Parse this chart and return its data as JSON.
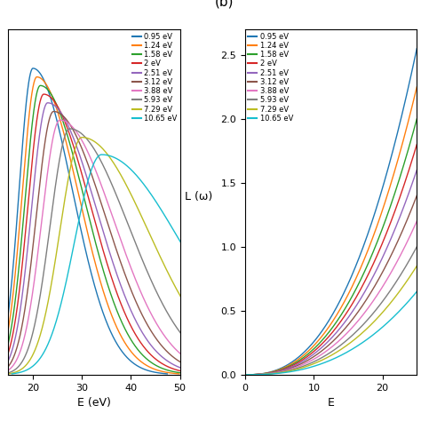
{
  "legend_labels": [
    "0.95 eV",
    "1.24 eV",
    "1.58 eV",
    "2 eV",
    "2.51 eV",
    "3.12 eV",
    "3.88 eV",
    "5.93 eV",
    "7.29 eV",
    "10.65 eV"
  ],
  "colors": [
    "#1f77b4",
    "#ff7f0e",
    "#2ca02c",
    "#d62728",
    "#9467bd",
    "#8c564b",
    "#e377c2",
    "#7f7f7f",
    "#bcbd22",
    "#17becf"
  ],
  "panel_b_label": "(b)",
  "xlabel_a": "E (eV)",
  "xlabel_b": "E",
  "ylabel_b": "L (ω)",
  "panel_a_xlim": [
    15,
    50
  ],
  "panel_a_ylim": [
    0,
    4.0
  ],
  "panel_b_xlim": [
    0,
    25
  ],
  "panel_b_ylim": [
    0,
    2.7
  ],
  "absorption_peak_x": [
    20.0,
    20.8,
    21.5,
    22.2,
    23.0,
    24.2,
    25.5,
    27.5,
    30.0,
    34.0
  ],
  "absorption_peak_y": [
    3.55,
    3.45,
    3.35,
    3.25,
    3.15,
    3.05,
    2.95,
    2.85,
    2.75,
    2.55
  ],
  "absorption_left_width": [
    2.8,
    3.0,
    3.1,
    3.2,
    3.3,
    3.5,
    3.7,
    4.0,
    4.5,
    5.5
  ],
  "absorption_right_width": [
    8.0,
    8.5,
    9.0,
    9.5,
    10.0,
    10.5,
    11.0,
    12.0,
    13.5,
    16.0
  ],
  "loss_scale": [
    2.55,
    2.25,
    2.0,
    1.8,
    1.6,
    1.4,
    1.2,
    1.0,
    0.85,
    0.65
  ],
  "loss_power": [
    2.5,
    2.5,
    2.5,
    2.5,
    2.5,
    2.5,
    2.5,
    2.5,
    2.5,
    2.5
  ],
  "loss_onset": [
    0.0,
    0.0,
    0.0,
    0.0,
    0.0,
    0.0,
    0.0,
    0.0,
    0.0,
    0.0
  ]
}
